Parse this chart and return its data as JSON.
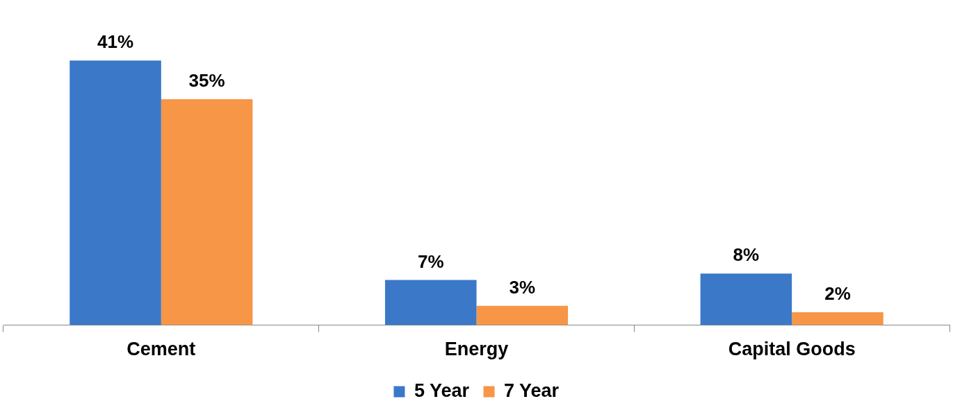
{
  "chart_data": {
    "type": "bar",
    "categories": [
      "Cement",
      "Energy",
      "Capital Goods"
    ],
    "series": [
      {
        "name": "5 Year",
        "color": "#3b78c8",
        "values": [
          41,
          7,
          8
        ],
        "value_labels": [
          "41%",
          "7%",
          "8%"
        ]
      },
      {
        "name": "7 Year",
        "color": "#f79646",
        "values": [
          35,
          3,
          2
        ],
        "value_labels": [
          "35%",
          "3%",
          "2%"
        ]
      }
    ],
    "legend": "bottom",
    "grid": false
  }
}
